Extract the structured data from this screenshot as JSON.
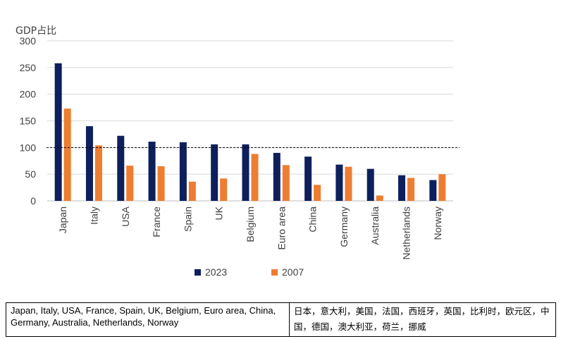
{
  "chart_data": {
    "type": "bar",
    "ylabel": "GDP占比",
    "ylim": [
      0,
      300
    ],
    "yticks": [
      0,
      50,
      100,
      150,
      200,
      250,
      300
    ],
    "reference_line": 100,
    "grid": true,
    "legend_position": "bottom",
    "categories": [
      "Japan",
      "Italy",
      "USA",
      "France",
      "Spain",
      "UK",
      "Belgium",
      "Euro area",
      "China",
      "Germany",
      "Australia",
      "Netherlands",
      "Norway"
    ],
    "series": [
      {
        "name": "2023",
        "color": "#0d1f5c",
        "values": [
          258,
          140,
          122,
          111,
          110,
          106,
          106,
          90,
          83,
          68,
          60,
          48,
          39
        ]
      },
      {
        "name": "2007",
        "color": "#ed7d31",
        "values": [
          173,
          104,
          66,
          65,
          36,
          42,
          88,
          67,
          30,
          64,
          10,
          43,
          50
        ]
      }
    ]
  },
  "caption": {
    "english": "Japan, Italy, USA, France, Spain, UK, Belgium, Euro area, China, Germany, Australia, Netherlands, Norway",
    "chinese": "日本，意大利，美国，法国，西班牙，英国，比利时，欧元区，中国，德国，澳大利亚，荷兰，挪威"
  }
}
